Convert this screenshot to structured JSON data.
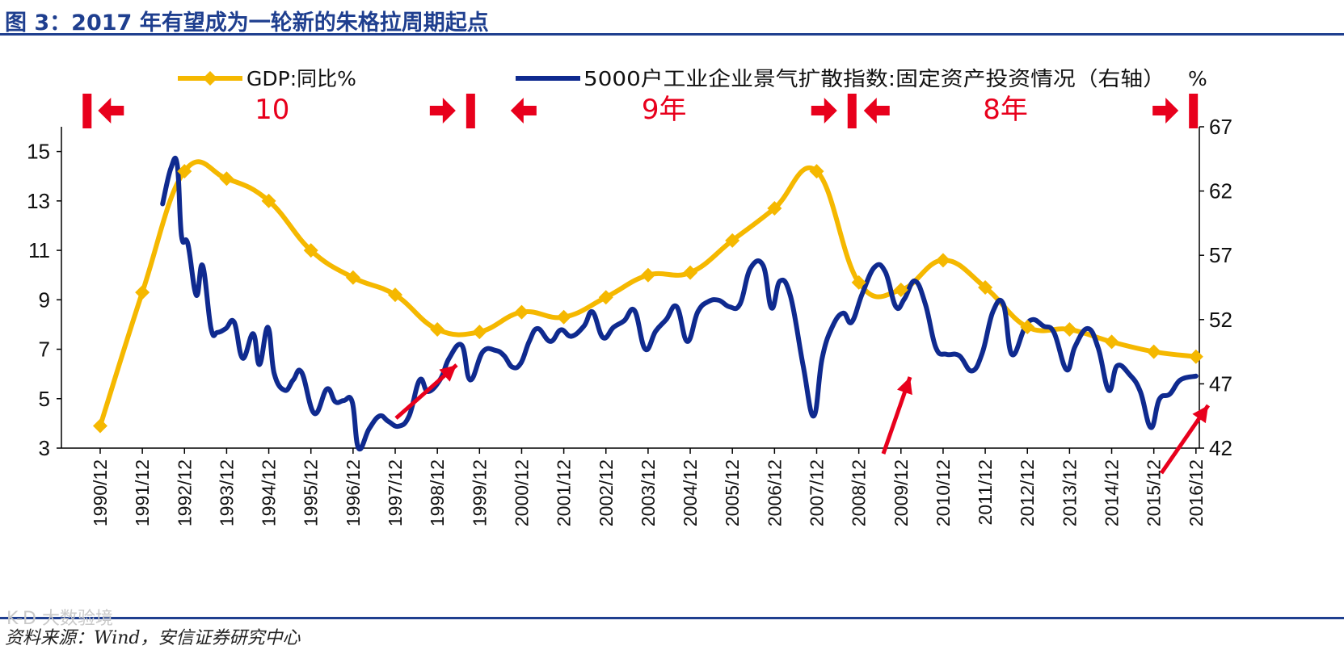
{
  "page": {
    "title": "图 3：2017 年有望成为一轮新的朱格拉周期起点",
    "source": "资料来源：Wind，安信证券研究中心",
    "watermark": "K-D 大数验境"
  },
  "chart_data": {
    "type": "line",
    "categories": [
      "1990/12",
      "1991/12",
      "1992/12",
      "1993/12",
      "1994/12",
      "1995/12",
      "1996/12",
      "1997/12",
      "1998/12",
      "1999/12",
      "2000/12",
      "2001/12",
      "2002/12",
      "2003/12",
      "2004/12",
      "2005/12",
      "2006/12",
      "2007/12",
      "2008/12",
      "2009/12",
      "2010/12",
      "2011/12",
      "2012/12",
      "2013/12",
      "2014/12",
      "2015/12",
      "2016/12"
    ],
    "left_axis": {
      "ylim": [
        3,
        16
      ],
      "ticks": [
        3,
        5,
        7,
        9,
        11,
        13,
        15
      ]
    },
    "right_axis": {
      "ylim": [
        42,
        67
      ],
      "ticks": [
        42,
        47,
        52,
        57,
        62,
        67
      ],
      "label": "%"
    },
    "series": [
      {
        "name": "GDP:同比%",
        "axis": "left",
        "color": "#f5b800",
        "x": [
          1990.92,
          1991.92,
          1992.92,
          1993.92,
          1994.92,
          1995.92,
          1996.92,
          1997.92,
          1998.92,
          1999.92,
          2000.92,
          2001.92,
          2002.92,
          2003.92,
          2004.92,
          2005.92,
          2006.92,
          2007.92,
          2008.92,
          2009.92,
          2010.92,
          2011.92,
          2012.92,
          2013.92,
          2014.92,
          2015.92,
          2016.92
        ],
        "values": [
          3.9,
          9.3,
          14.2,
          13.9,
          13.0,
          11.0,
          9.9,
          9.2,
          7.8,
          7.7,
          8.5,
          8.3,
          9.1,
          10.0,
          10.1,
          11.4,
          12.7,
          14.2,
          9.7,
          9.4,
          10.6,
          9.5,
          7.9,
          7.8,
          7.3,
          6.9,
          6.7
        ]
      },
      {
        "name": "5000户工业企业景气扩散指数:固定资产投资情况（右轴）",
        "axis": "right",
        "color": "#0f2a8f",
        "x": [
          1992.4,
          1992.6,
          1992.75,
          1992.85,
          1993.0,
          1993.2,
          1993.35,
          1993.55,
          1993.7,
          1993.9,
          1994.1,
          1994.3,
          1994.55,
          1994.7,
          1994.9,
          1995.05,
          1995.3,
          1995.5,
          1995.7,
          1996.0,
          1996.3,
          1996.5,
          1996.7,
          1996.9,
          1997.05,
          1997.3,
          1997.55,
          1997.75,
          1998.0,
          1998.25,
          1998.5,
          1998.7,
          1999.0,
          1999.2,
          1999.5,
          1999.7,
          2000.0,
          2000.3,
          2000.5,
          2000.7,
          2000.9,
          2001.1,
          2001.3,
          2001.6,
          2001.85,
          2002.1,
          2002.4,
          2002.6,
          2002.85,
          2003.1,
          2003.35,
          2003.6,
          2003.85,
          2004.1,
          2004.35,
          2004.6,
          2004.85,
          2005.1,
          2005.35,
          2005.6,
          2005.85,
          2006.1,
          2006.35,
          2006.65,
          2006.85,
          2007.05,
          2007.3,
          2007.6,
          2007.85,
          2008.05,
          2008.3,
          2008.55,
          2008.75,
          2009.0,
          2009.3,
          2009.55,
          2009.8,
          2010.0,
          2010.25,
          2010.5,
          2010.75,
          2011.0,
          2011.3,
          2011.6,
          2011.85,
          2012.1,
          2012.35,
          2012.55,
          2012.85,
          2013.05,
          2013.3,
          2013.55,
          2013.85,
          2014.05,
          2014.35,
          2014.6,
          2014.85,
          2015.05,
          2015.35,
          2015.6,
          2015.85,
          2016.05,
          2016.3,
          2016.55,
          2016.92
        ],
        "values": [
          61.0,
          63.8,
          64.0,
          58.5,
          57.9,
          53.9,
          56.2,
          51.3,
          51.0,
          51.3,
          51.8,
          49.0,
          50.9,
          48.5,
          51.4,
          47.8,
          46.5,
          47.3,
          47.9,
          44.7,
          46.6,
          45.6,
          45.7,
          45.6,
          42.0,
          43.5,
          44.5,
          44.1,
          43.7,
          44.5,
          47.3,
          46.4,
          47.4,
          49.0,
          50.0,
          47.3,
          49.5,
          49.6,
          49.2,
          48.3,
          48.6,
          50.3,
          51.3,
          50.3,
          51.2,
          50.7,
          51.5,
          52.6,
          50.6,
          51.4,
          51.9,
          52.7,
          49.7,
          51.1,
          52.0,
          53.0,
          50.3,
          52.6,
          53.4,
          53.5,
          53.0,
          53.2,
          56.0,
          56.2,
          52.9,
          55.0,
          53.8,
          48.4,
          44.5,
          49.0,
          51.5,
          52.5,
          51.8,
          54.0,
          56.1,
          55.7,
          53.0,
          53.6,
          55.0,
          53.2,
          49.8,
          49.3,
          49.2,
          48.0,
          49.4,
          52.6,
          53.2,
          49.3,
          51.3,
          52.0,
          51.5,
          51.0,
          48.1,
          49.9,
          51.3,
          49.8,
          46.5,
          48.4,
          47.7,
          46.4,
          43.6,
          45.8,
          46.2,
          47.3,
          47.6
        ]
      }
    ],
    "legend": [
      {
        "label": "GDP:同比%",
        "color": "#f5b800"
      },
      {
        "label": "5000户工业企业景气扩散指数:固定资产投资情况（右轴）",
        "color": "#0f2a8f"
      }
    ],
    "right_unit": "%",
    "annotations": {
      "cycle_labels": [
        {
          "text": "10",
          "x": 1995.0
        },
        {
          "text": "9年",
          "x": 2004.3
        },
        {
          "text": "8年",
          "x": 2012.4
        }
      ],
      "cycle_boundaries": [
        1990.6,
        1999.7,
        2008.75,
        2016.85
      ]
    }
  }
}
